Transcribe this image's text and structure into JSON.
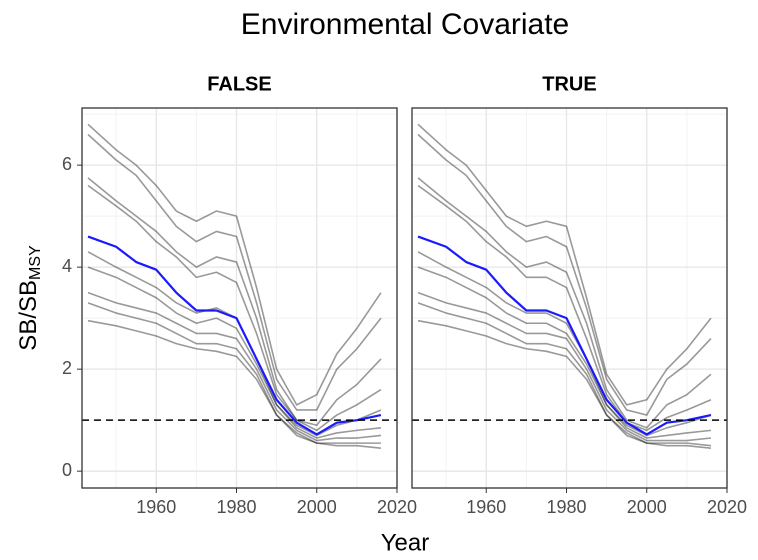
{
  "title": "Environmental Covariate",
  "x_label": "Year",
  "y_label": {
    "main": "SB/SB",
    "sub": "MSY"
  },
  "chart_data": [
    {
      "type": "line",
      "facet": "FALSE",
      "grid": true,
      "reference_line": 1,
      "x": [
        1943,
        1950,
        1955,
        1960,
        1965,
        1970,
        1975,
        1980,
        1985,
        1990,
        1995,
        2000,
        2005,
        2010,
        2016
      ],
      "xlim": [
        1941.5,
        2020
      ],
      "xticks": [
        1960,
        1980,
        2000,
        2020
      ],
      "x_minor_ticks": [
        1950,
        1970,
        1990,
        2010
      ],
      "ylim": [
        -0.33,
        7.12
      ],
      "yticks": [
        0,
        2,
        4,
        6
      ],
      "y_minor_ticks": [
        1,
        3,
        5,
        7
      ],
      "series": [
        {
          "color": "rgba(0,0,0,0.4)",
          "values": [
            6.8,
            6.3,
            6.0,
            5.6,
            5.1,
            4.9,
            5.1,
            5.0,
            3.6,
            2.0,
            1.3,
            1.5,
            2.3,
            2.8,
            3.5
          ]
        },
        {
          "color": "rgba(0,0,0,0.4)",
          "values": [
            6.6,
            6.1,
            5.8,
            5.3,
            4.8,
            4.5,
            4.7,
            4.6,
            3.3,
            1.8,
            1.2,
            1.2,
            2.0,
            2.4,
            3.0
          ]
        },
        {
          "color": "rgba(0,0,0,0.4)",
          "values": [
            5.75,
            5.3,
            5.0,
            4.7,
            4.3,
            4.0,
            4.2,
            4.1,
            3.0,
            1.6,
            1.0,
            0.9,
            1.4,
            1.7,
            2.2
          ]
        },
        {
          "color": "rgba(0,0,0,0.4)",
          "values": [
            5.6,
            5.2,
            4.9,
            4.5,
            4.2,
            3.8,
            3.9,
            3.7,
            2.7,
            1.5,
            1.0,
            0.8,
            1.1,
            1.3,
            1.6
          ]
        },
        {
          "color": "rgba(0,0,0,0.4)",
          "values": [
            4.3,
            4.0,
            3.8,
            3.6,
            3.3,
            3.1,
            3.2,
            3.0,
            2.2,
            1.3,
            0.9,
            0.7,
            0.9,
            1.0,
            1.2
          ]
        },
        {
          "color": "rgba(0,0,0,0.4)",
          "values": [
            4.0,
            3.8,
            3.6,
            3.4,
            3.1,
            2.9,
            3.0,
            2.8,
            2.1,
            1.3,
            0.85,
            0.65,
            0.75,
            0.8,
            0.85
          ]
        },
        {
          "color": "rgba(0,0,0,0.4)",
          "values": [
            3.5,
            3.3,
            3.2,
            3.1,
            2.9,
            2.7,
            2.7,
            2.6,
            2.0,
            1.2,
            0.8,
            0.6,
            0.65,
            0.65,
            0.7
          ]
        },
        {
          "color": "rgba(0,0,0,0.4)",
          "values": [
            3.3,
            3.1,
            3.0,
            2.9,
            2.7,
            2.5,
            2.5,
            2.4,
            1.9,
            1.1,
            0.75,
            0.55,
            0.55,
            0.55,
            0.55
          ]
        },
        {
          "color": "rgba(0,0,0,0.4)",
          "values": [
            2.95,
            2.85,
            2.75,
            2.65,
            2.5,
            2.4,
            2.35,
            2.25,
            1.8,
            1.1,
            0.7,
            0.55,
            0.5,
            0.5,
            0.45
          ]
        },
        {
          "color": "#1a1aff",
          "values": [
            4.6,
            4.4,
            4.1,
            3.95,
            3.5,
            3.15,
            3.15,
            3.0,
            2.2,
            1.4,
            0.95,
            0.72,
            0.95,
            1.0,
            1.1
          ]
        }
      ]
    },
    {
      "type": "line",
      "facet": "TRUE",
      "grid": true,
      "reference_line": 1,
      "x": [
        1943,
        1950,
        1955,
        1960,
        1965,
        1970,
        1975,
        1980,
        1985,
        1990,
        1995,
        2000,
        2005,
        2010,
        2016
      ],
      "xlim": [
        1941.5,
        2020
      ],
      "xticks": [
        1960,
        1980,
        2000,
        2020
      ],
      "x_minor_ticks": [
        1950,
        1970,
        1990,
        2010
      ],
      "ylim": [
        -0.33,
        7.12
      ],
      "yticks": [
        0,
        2,
        4,
        6
      ],
      "y_minor_ticks": [
        1,
        3,
        5,
        7
      ],
      "series": [
        {
          "color": "rgba(0,0,0,0.4)",
          "values": [
            6.8,
            6.3,
            6.0,
            5.5,
            5.0,
            4.8,
            4.9,
            4.8,
            3.4,
            1.9,
            1.3,
            1.4,
            2.0,
            2.4,
            3.0
          ]
        },
        {
          "color": "rgba(0,0,0,0.4)",
          "values": [
            6.6,
            6.1,
            5.8,
            5.3,
            4.8,
            4.5,
            4.6,
            4.4,
            3.2,
            1.8,
            1.2,
            1.1,
            1.8,
            2.1,
            2.6
          ]
        },
        {
          "color": "rgba(0,0,0,0.4)",
          "values": [
            5.75,
            5.3,
            5.0,
            4.7,
            4.3,
            4.0,
            4.1,
            3.9,
            2.9,
            1.6,
            1.0,
            0.85,
            1.3,
            1.5,
            1.9
          ]
        },
        {
          "color": "rgba(0,0,0,0.4)",
          "values": [
            5.6,
            5.2,
            4.9,
            4.5,
            4.2,
            3.8,
            3.8,
            3.6,
            2.6,
            1.5,
            0.95,
            0.8,
            1.05,
            1.2,
            1.4
          ]
        },
        {
          "color": "rgba(0,0,0,0.4)",
          "values": [
            4.3,
            4.0,
            3.8,
            3.6,
            3.3,
            3.1,
            3.1,
            2.9,
            2.2,
            1.3,
            0.9,
            0.7,
            0.85,
            0.95,
            1.1
          ]
        },
        {
          "color": "rgba(0,0,0,0.4)",
          "values": [
            4.0,
            3.8,
            3.6,
            3.4,
            3.1,
            2.9,
            2.9,
            2.7,
            2.1,
            1.3,
            0.85,
            0.65,
            0.7,
            0.75,
            0.8
          ]
        },
        {
          "color": "rgba(0,0,0,0.4)",
          "values": [
            3.5,
            3.3,
            3.2,
            3.1,
            2.9,
            2.7,
            2.7,
            2.6,
            2.0,
            1.2,
            0.8,
            0.6,
            0.6,
            0.6,
            0.65
          ]
        },
        {
          "color": "rgba(0,0,0,0.4)",
          "values": [
            3.3,
            3.1,
            3.0,
            2.9,
            2.7,
            2.5,
            2.5,
            2.4,
            1.9,
            1.1,
            0.75,
            0.55,
            0.55,
            0.55,
            0.5
          ]
        },
        {
          "color": "rgba(0,0,0,0.4)",
          "values": [
            2.95,
            2.85,
            2.75,
            2.65,
            2.5,
            2.4,
            2.35,
            2.25,
            1.8,
            1.1,
            0.7,
            0.55,
            0.5,
            0.5,
            0.45
          ]
        },
        {
          "color": "#1a1aff",
          "values": [
            4.6,
            4.4,
            4.1,
            3.95,
            3.5,
            3.15,
            3.15,
            3.0,
            2.2,
            1.4,
            0.95,
            0.72,
            0.95,
            1.0,
            1.1
          ]
        }
      ]
    }
  ]
}
